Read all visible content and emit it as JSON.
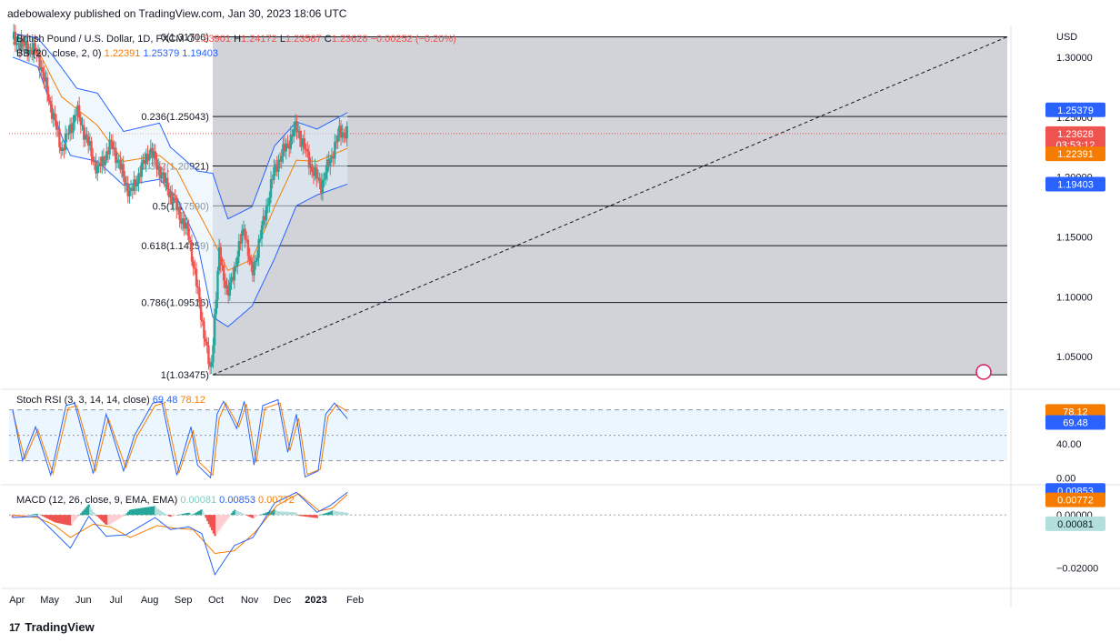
{
  "header": {
    "publisher_line": "adebowalexy published on TradingView.com, Jan 30, 2023 18:06 UTC"
  },
  "footer": {
    "brand": "TradingView",
    "logo_glyph": "17"
  },
  "legend": {
    "symbol": "British Pound / U.S. Dollar, 1D, FXCM",
    "ohlc": [
      {
        "k": "O",
        "v": "1.23901"
      },
      {
        "k": "H",
        "v": "1.24172"
      },
      {
        "k": "L",
        "v": "1.23587"
      },
      {
        "k": "C",
        "v": "1.23628"
      }
    ],
    "change": "−0.00252 (−0.20%)",
    "bb_label": "BB (20, close, 2, 0)",
    "bb_values": [
      "1.22391",
      "1.25379",
      "1.19403"
    ],
    "stoch_label": "Stoch RSI (3, 3, 14, 14, close)",
    "stoch_values": [
      "69.48",
      "78.12"
    ],
    "macd_label": "MACD (12, 26, close, 9, EMA, EMA)",
    "macd_values": [
      "0.00081",
      "0.00853",
      "0.00772"
    ]
  },
  "colors": {
    "up": "#26a69a",
    "down": "#ef5350",
    "bb_band": "#2962ff",
    "bb_basis": "#f57c00",
    "bb_fill": "#e3f2fd",
    "fib_fill": "#b2b5be",
    "macd_line": "#2962ff",
    "signal_line": "#f57c00",
    "k_line": "#2962ff",
    "d_line": "#f57c00"
  },
  "chart_data": [
    {
      "type": "candlestick",
      "title": "British Pound / U.S. Dollar, 1D, FXCM",
      "currency_label": "USD",
      "x_ticks": [
        "Apr",
        "May",
        "Jun",
        "Jul",
        "Aug",
        "Sep",
        "Oct",
        "Nov",
        "Dec",
        "2023",
        "Feb"
      ],
      "y_ticks": [
        "1.30000",
        "1.25000",
        "1.20000",
        "1.15000",
        "1.10000",
        "1.05000"
      ],
      "ylim": [
        1.025,
        1.325
      ],
      "price_path": [
        [
          "Mar 28",
          1.315
        ],
        [
          "Apr 20",
          1.303
        ],
        [
          "May 12",
          1.222
        ],
        [
          "May 26",
          1.255
        ],
        [
          "Jun 14",
          1.205
        ],
        [
          "Jun 27",
          1.228
        ],
        [
          "Jul 14",
          1.185
        ],
        [
          "Aug 1",
          1.223
        ],
        [
          "Aug 24",
          1.178
        ],
        [
          "Sep 6",
          1.151
        ],
        [
          "Sep 26",
          1.035
        ],
        [
          "Oct 4",
          1.136
        ],
        [
          "Oct 12",
          1.101
        ],
        [
          "Oct 27",
          1.159
        ],
        [
          "Nov 3",
          1.117
        ],
        [
          "Nov 24",
          1.207
        ],
        [
          "Dec 14",
          1.242
        ],
        [
          "Dec 30",
          1.203
        ],
        [
          "Jan 6",
          1.193
        ],
        [
          "Jan 23",
          1.238
        ],
        [
          "Jan 30",
          1.23628
        ]
      ],
      "bollinger": {
        "upper_last": 1.25379,
        "basis_last": 1.22391,
        "lower_last": 1.19403,
        "upper_path": [
          [
            "Mar 28",
            1.32
          ],
          [
            "Apr 20",
            1.316
          ],
          [
            "May 5",
            1.3
          ],
          [
            "May 26",
            1.274
          ],
          [
            "Jun 14",
            1.27
          ],
          [
            "Jul 8",
            1.238
          ],
          [
            "Aug 10",
            1.245
          ],
          [
            "Aug 20",
            1.225
          ],
          [
            "Sep 14",
            1.205
          ],
          [
            "Sep 28",
            1.203
          ],
          [
            "Oct 12",
            1.165
          ],
          [
            "Nov 3",
            1.175
          ],
          [
            "Nov 24",
            1.226
          ],
          [
            "Dec 14",
            1.246
          ],
          [
            "Jan 2",
            1.24
          ],
          [
            "Jan 30",
            1.25379
          ]
        ],
        "basis_path": [
          [
            "Mar 28",
            1.312
          ],
          [
            "Apr 20",
            1.306
          ],
          [
            "May 12",
            1.267
          ],
          [
            "Jun 14",
            1.243
          ],
          [
            "Jul 8",
            1.213
          ],
          [
            "Aug 10",
            1.218
          ],
          [
            "Aug 26",
            1.206
          ],
          [
            "Sep 14",
            1.172
          ],
          [
            "Sep 28",
            1.148
          ],
          [
            "Oct 12",
            1.122
          ],
          [
            "Nov 3",
            1.131
          ],
          [
            "Nov 24",
            1.175
          ],
          [
            "Dec 14",
            1.214
          ],
          [
            "Jan 2",
            1.213
          ],
          [
            "Jan 30",
            1.22391
          ]
        ],
        "lower_path": [
          [
            "Mar 28",
            1.3
          ],
          [
            "Apr 20",
            1.292
          ],
          [
            "May 12",
            1.234
          ],
          [
            "May 20",
            1.218
          ],
          [
            "Jun 14",
            1.213
          ],
          [
            "Jul 8",
            1.193
          ],
          [
            "Aug 10",
            1.198
          ],
          [
            "Aug 26",
            1.183
          ],
          [
            "Sep 14",
            1.145
          ],
          [
            "Sep 28",
            1.083
          ],
          [
            "Oct 12",
            1.075
          ],
          [
            "Nov 3",
            1.092
          ],
          [
            "Nov 24",
            1.132
          ],
          [
            "Dec 14",
            1.176
          ],
          [
            "Jan 2",
            1.185
          ],
          [
            "Jan 30",
            1.19403
          ]
        ]
      },
      "fibonacci": [
        {
          "ratio": "0",
          "price": 1.31706
        },
        {
          "ratio": "0.236",
          "price": 1.25043
        },
        {
          "ratio": "0.382",
          "price": 1.20921
        },
        {
          "ratio": "0.5",
          "price": 1.1759
        },
        {
          "ratio": "0.618",
          "price": 1.14259
        },
        {
          "ratio": "0.786",
          "price": 1.09516
        },
        {
          "ratio": "1",
          "price": 1.03475
        }
      ],
      "fib_label_text": [
        "0(1.31706)",
        "0.236(1.25043)",
        "0.382(1.20921)",
        "0.5(1.17590)",
        "0.618(1.14259)",
        "0.786(1.09516)",
        "1(1.03475)"
      ],
      "price_labels": [
        {
          "text": "1.25379",
          "value": 1.25379,
          "color": "#2962ff"
        },
        {
          "text": "1.23628",
          "value": 1.23628,
          "color": "#ef5350",
          "sub": "03:53:12"
        },
        {
          "text": "1.22391",
          "value": 1.22391,
          "color": "#f57c00"
        },
        {
          "text": "1.19403",
          "value": 1.19403,
          "color": "#2962ff"
        }
      ]
    },
    {
      "type": "line",
      "title": "Stoch RSI (3, 3, 14, 14, close)",
      "y_ticks": [
        "40.00",
        "0.00"
      ],
      "ylim": [
        -5,
        100
      ],
      "bands": [
        80,
        50,
        20
      ],
      "k_path": [
        [
          "Mar 28",
          80
        ],
        [
          "Apr 6",
          20
        ],
        [
          "Apr 18",
          60
        ],
        [
          "May 2",
          3
        ],
        [
          "May 16",
          85
        ],
        [
          "May 24",
          88
        ],
        [
          "Jun 10",
          5
        ],
        [
          "Jun 22",
          75
        ],
        [
          "Jul 8",
          8
        ],
        [
          "Jul 18",
          50
        ],
        [
          "Aug 4",
          88
        ],
        [
          "Aug 12",
          90
        ],
        [
          "Aug 26",
          3
        ],
        [
          "Sep 8",
          60
        ],
        [
          "Sep 14",
          15
        ],
        [
          "Sep 26",
          0
        ],
        [
          "Oct 2",
          75
        ],
        [
          "Oct 8",
          90
        ],
        [
          "Oct 20",
          58
        ],
        [
          "Oct 27",
          90
        ],
        [
          "Nov 5",
          15
        ],
        [
          "Nov 13",
          85
        ],
        [
          "Nov 27",
          92
        ],
        [
          "Dec 6",
          30
        ],
        [
          "Dec 14",
          75
        ],
        [
          "Dec 22",
          1
        ],
        [
          "Jan 3",
          8
        ],
        [
          "Jan 10",
          75
        ],
        [
          "Jan 18",
          88
        ],
        [
          "Jan 30",
          69.48
        ]
      ],
      "d_path": [
        [
          "Mar 28",
          78
        ],
        [
          "Apr 8",
          22
        ],
        [
          "Apr 20",
          57
        ],
        [
          "May 4",
          5
        ],
        [
          "May 18",
          82
        ],
        [
          "May 26",
          85
        ],
        [
          "Jun 12",
          8
        ],
        [
          "Jun 24",
          70
        ],
        [
          "Jul 10",
          12
        ],
        [
          "Jul 20",
          48
        ],
        [
          "Aug 6",
          85
        ],
        [
          "Aug 14",
          88
        ],
        [
          "Aug 28",
          6
        ],
        [
          "Sep 10",
          55
        ],
        [
          "Sep 16",
          18
        ],
        [
          "Sep 28",
          3
        ],
        [
          "Oct 4",
          70
        ],
        [
          "Oct 10",
          88
        ],
        [
          "Oct 22",
          60
        ],
        [
          "Oct 29",
          87
        ],
        [
          "Nov 7",
          18
        ],
        [
          "Nov 15",
          82
        ],
        [
          "Nov 29",
          88
        ],
        [
          "Dec 8",
          32
        ],
        [
          "Dec 16",
          70
        ],
        [
          "Dec 24",
          4
        ],
        [
          "Jan 5",
          10
        ],
        [
          "Jan 12",
          72
        ],
        [
          "Jan 20",
          86
        ],
        [
          "Jan 30",
          78.12
        ]
      ],
      "price_labels": [
        {
          "text": "78.12",
          "value": 78.12,
          "color": "#f57c00"
        },
        {
          "text": "69.48",
          "value": 69.48,
          "color": "#2962ff"
        }
      ]
    },
    {
      "type": "bar",
      "title": "MACD (12, 26, close, 9, EMA, EMA)",
      "y_ticks": [
        "0.00000",
        "−0.02000"
      ],
      "ylim": [
        -0.027,
        0.01
      ],
      "macd_path": [
        [
          "Mar 28",
          -0.001
        ],
        [
          "Apr 20",
          -0.0005
        ],
        [
          "May 4",
          -0.006
        ],
        [
          "May 20",
          -0.0125
        ],
        [
          "Jun 6",
          -0.0005
        ],
        [
          "Jun 22",
          -0.008
        ],
        [
          "Jul 10",
          -0.0075
        ],
        [
          "Aug 6",
          -0.001
        ],
        [
          "Aug 20",
          -0.0055
        ],
        [
          "Sep 6",
          -0.0045
        ],
        [
          "Sep 18",
          -0.007
        ],
        [
          "Sep 30",
          -0.0225
        ],
        [
          "Oct 18",
          -0.0115
        ],
        [
          "Nov 4",
          -0.0085
        ],
        [
          "Nov 24",
          0.0045
        ],
        [
          "Dec 14",
          0.0085
        ],
        [
          "Jan 2",
          0.001
        ],
        [
          "Jan 14",
          0.0035
        ],
        [
          "Jan 30",
          0.00853
        ]
      ],
      "signal_path": [
        [
          "Mar 28",
          0.0
        ],
        [
          "Apr 20",
          -0.001
        ],
        [
          "May 6",
          -0.004
        ],
        [
          "May 20",
          -0.0085
        ],
        [
          "Jun 10",
          -0.0035
        ],
        [
          "Jun 26",
          -0.0045
        ],
        [
          "Jul 14",
          -0.0085
        ],
        [
          "Aug 8",
          -0.004
        ],
        [
          "Aug 24",
          -0.005
        ],
        [
          "Sep 10",
          -0.0055
        ],
        [
          "Sep 30",
          -0.0145
        ],
        [
          "Oct 18",
          -0.0135
        ],
        [
          "Nov 6",
          -0.0065
        ],
        [
          "Nov 26",
          0.0035
        ],
        [
          "Dec 16",
          0.008
        ],
        [
          "Jan 4",
          0.0015
        ],
        [
          "Jan 16",
          0.0025
        ],
        [
          "Jan 30",
          0.00772
        ]
      ],
      "histogram_last": 0.00081,
      "price_labels": [
        {
          "text": "0.00853",
          "value": 0.00853,
          "color": "#2962ff"
        },
        {
          "text": "0.00772",
          "value": 0.00772,
          "color": "#f57c00"
        },
        {
          "text": "0.00081",
          "value": 0.00081,
          "color": "#b2dfdb",
          "textColor": "#131722"
        }
      ]
    }
  ]
}
